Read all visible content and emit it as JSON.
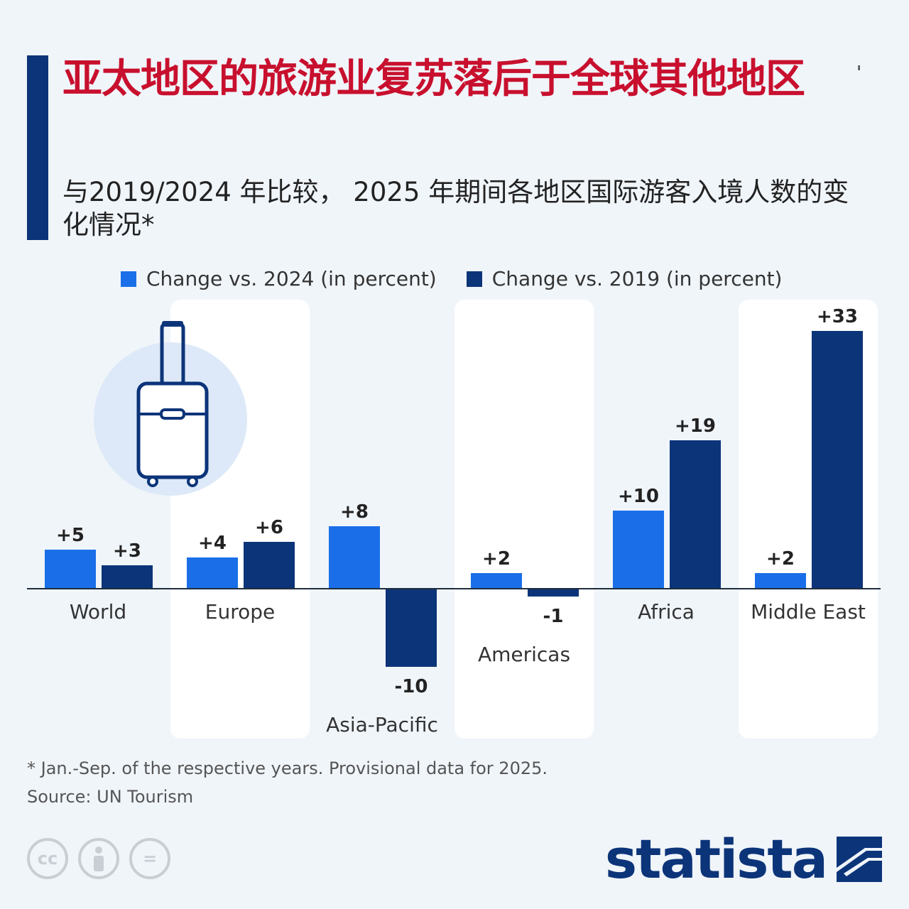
{
  "title": "亚太地区的旅游业复苏落后于全球其他地区",
  "title_mark": "'",
  "subtitle": "与2019/2024 年比较， 2025 年期间各地区国际游客入境人数的变化情况*",
  "legend": [
    {
      "label": "Change vs. 2024 (in percent)",
      "color": "#1a6fe8"
    },
    {
      "label": "Change vs. 2019 (in percent)",
      "color": "#0c3479"
    }
  ],
  "chart_data": {
    "type": "bar",
    "categories": [
      "World",
      "Europe",
      "Asia-Pacific",
      "Americas",
      "Africa",
      "Middle East"
    ],
    "series": [
      {
        "name": "Change vs. 2024 (in percent)",
        "values": [
          5,
          4,
          8,
          2,
          10,
          2
        ],
        "labels": [
          "+5",
          "+4",
          "+8",
          "+2",
          "+10",
          "+2"
        ],
        "color": "#1a6fe8"
      },
      {
        "name": "Change vs. 2019 (in percent)",
        "values": [
          3,
          6,
          -10,
          -1,
          19,
          33
        ],
        "labels": [
          "+3",
          "+6",
          "-10",
          "-1",
          "+19",
          "+33"
        ],
        "color": "#0c3479"
      }
    ],
    "ylim": [
      -10,
      33
    ],
    "grid": false,
    "legend_position": "top"
  },
  "footnote": "* Jan.-Sep. of the respective years. Provisional data for 2025.",
  "source": "Source: UN Tourism",
  "license_icons": [
    "cc-icon",
    "attribution-icon",
    "no-derivatives-icon"
  ],
  "license_glyphs": {
    "cc": "cc",
    "nd": "="
  },
  "brand": "statista"
}
